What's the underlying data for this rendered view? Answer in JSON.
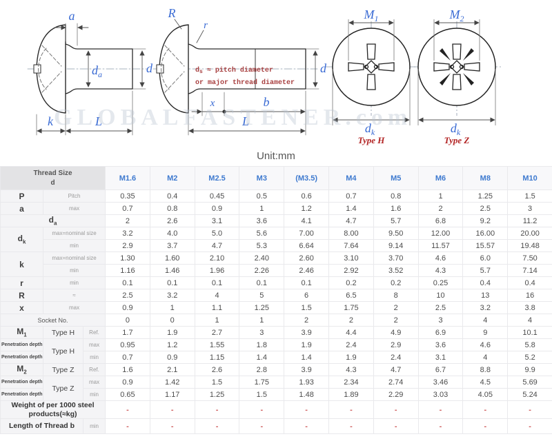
{
  "unit_label": "Unit:mm",
  "diagrams": {
    "watermark": "GLOBALFASTENER.com",
    "side_view_left": {
      "a": "a",
      "da_base": "d",
      "da_sub": "a",
      "d": "d",
      "k": "k",
      "L": "L"
    },
    "side_view_right": {
      "R": "R",
      "r": "r",
      "ds_base": "d",
      "ds_sub": "s",
      "ds_rest": " ≈ pitch diameter",
      "note_line2": "or major thread diameter",
      "d": "d",
      "x": "x",
      "b": "b",
      "L": "L"
    },
    "head_type_h": {
      "m_base": "M",
      "m_sub": "1",
      "dk_base": "d",
      "dk_sub": "k",
      "caption": "Type H"
    },
    "head_type_z": {
      "m_base": "M",
      "m_sub": "2",
      "dk_base": "d",
      "dk_sub": "k",
      "caption": "Type Z"
    }
  },
  "table": {
    "corner": [
      "Thread Size",
      "d"
    ],
    "columns": [
      "M1.6",
      "M2",
      "M2.5",
      "M3",
      "(M3.5)",
      "M4",
      "M5",
      "M6",
      "M8",
      "M10"
    ],
    "rows": [
      {
        "id": "P",
        "labels": [
          {
            "t": "P",
            "cls": "lbl-main",
            "span": 1
          },
          {
            "t": "Pitch",
            "cls": "lbl-sub",
            "span": 2
          }
        ],
        "values": [
          "0.35",
          "0.4",
          "0.45",
          "0.5",
          "0.6",
          "0.7",
          "0.8",
          "1",
          "1.25",
          "1.5"
        ]
      },
      {
        "id": "a",
        "labels": [
          {
            "t": "a",
            "cls": "lbl-main",
            "span": 1
          },
          {
            "t": "max",
            "cls": "lbl-sub",
            "span": 2
          }
        ],
        "values": [
          "0.7",
          "0.8",
          "0.9",
          "1",
          "1.2",
          "1.4",
          "1.6",
          "2",
          "2.5",
          "3"
        ]
      },
      {
        "id": "da",
        "labels": [
          {
            "t": "d",
            "sub": "a",
            "cls": "lbl-main",
            "span": 3
          }
        ],
        "values": [
          "2",
          "2.6",
          "3.1",
          "3.6",
          "4.1",
          "4.7",
          "5.7",
          "6.8",
          "9.2",
          "11.2"
        ]
      },
      {
        "id": "dk-max",
        "labels": [
          {
            "t": "d",
            "sub": "k",
            "cls": "lbl-main",
            "span": 1,
            "rs": 2
          },
          {
            "t": "max=nominal size",
            "cls": "lbl-sub",
            "span": 2
          }
        ],
        "values": [
          "3.2",
          "4.0",
          "5.0",
          "5.6",
          "7.00",
          "8.00",
          "9.50",
          "12.00",
          "16.00",
          "20.00"
        ]
      },
      {
        "id": "dk-min",
        "labels": [
          {
            "t": "min",
            "cls": "lbl-sub",
            "span": 2
          }
        ],
        "values": [
          "2.9",
          "3.7",
          "4.7",
          "5.3",
          "6.64",
          "7.64",
          "9.14",
          "11.57",
          "15.57",
          "19.48"
        ]
      },
      {
        "id": "k-max",
        "labels": [
          {
            "t": "k",
            "cls": "lbl-main",
            "span": 1,
            "rs": 2
          },
          {
            "t": "max=nominal size",
            "cls": "lbl-sub",
            "span": 2
          }
        ],
        "values": [
          "1.30",
          "1.60",
          "2.10",
          "2.40",
          "2.60",
          "3.10",
          "3.70",
          "4.6",
          "6.0",
          "7.50"
        ]
      },
      {
        "id": "k-min",
        "labels": [
          {
            "t": "min",
            "cls": "lbl-sub",
            "span": 2
          }
        ],
        "values": [
          "1.16",
          "1.46",
          "1.96",
          "2.26",
          "2.46",
          "2.92",
          "3.52",
          "4.3",
          "5.7",
          "7.14"
        ]
      },
      {
        "id": "r",
        "labels": [
          {
            "t": "r",
            "cls": "lbl-main",
            "span": 1
          },
          {
            "t": "min",
            "cls": "lbl-sub",
            "span": 2
          }
        ],
        "values": [
          "0.1",
          "0.1",
          "0.1",
          "0.1",
          "0.1",
          "0.2",
          "0.2",
          "0.25",
          "0.4",
          "0.4"
        ]
      },
      {
        "id": "R",
        "labels": [
          {
            "t": "R",
            "cls": "lbl-main",
            "span": 1
          },
          {
            "t": "≈",
            "cls": "lbl-sub",
            "span": 2
          }
        ],
        "values": [
          "2.5",
          "3.2",
          "4",
          "5",
          "6",
          "6.5",
          "8",
          "10",
          "13",
          "16"
        ]
      },
      {
        "id": "x",
        "labels": [
          {
            "t": "x",
            "cls": "lbl-main",
            "span": 1
          },
          {
            "t": "max",
            "cls": "lbl-sub",
            "span": 2
          }
        ],
        "values": [
          "0.9",
          "1",
          "1.1",
          "1.25",
          "1.5",
          "1.75",
          "2",
          "2.5",
          "3.2",
          "3.8"
        ]
      },
      {
        "id": "socket",
        "labels": [
          {
            "t": "Socket No.",
            "cls": "lbl-sub2",
            "span": 3
          }
        ],
        "values": [
          "0",
          "0",
          "1",
          "1",
          "2",
          "2",
          "2",
          "3",
          "4",
          "4"
        ]
      },
      {
        "id": "M1",
        "labels": [
          {
            "t": "M",
            "sub": "1",
            "cls": "lbl-main",
            "span": 1
          },
          {
            "t": "Type H",
            "cls": "lbl-mid",
            "span": 1
          },
          {
            "t": "Ref.",
            "cls": "lbl-sub",
            "span": 1
          }
        ],
        "values": [
          "1.7",
          "1.9",
          "2.7",
          "3",
          "3.9",
          "4.4",
          "4.9",
          "6.9",
          "9",
          "10.1"
        ]
      },
      {
        "id": "penH-max",
        "labels": [
          {
            "t": "Penetration depth",
            "cls": "lbl-pen",
            "span": 1
          },
          {
            "t": "Type H",
            "cls": "lbl-mid",
            "span": 1,
            "rs": 2
          },
          {
            "t": "max",
            "cls": "lbl-sub",
            "span": 1
          }
        ],
        "values": [
          "0.95",
          "1.2",
          "1.55",
          "1.8",
          "1.9",
          "2.4",
          "2.9",
          "3.6",
          "4.6",
          "5.8"
        ]
      },
      {
        "id": "penH-min",
        "labels": [
          {
            "t": "Penetration depth",
            "cls": "lbl-pen",
            "span": 1
          },
          {
            "t": "min",
            "cls": "lbl-sub",
            "span": 1
          }
        ],
        "values": [
          "0.7",
          "0.9",
          "1.15",
          "1.4",
          "1.4",
          "1.9",
          "2.4",
          "3.1",
          "4",
          "5.2"
        ]
      },
      {
        "id": "M2",
        "labels": [
          {
            "t": "M",
            "sub": "2",
            "cls": "lbl-main",
            "span": 1
          },
          {
            "t": "Type Z",
            "cls": "lbl-mid",
            "span": 1
          },
          {
            "t": "Ref.",
            "cls": "lbl-sub",
            "span": 1
          }
        ],
        "values": [
          "1.6",
          "2.1",
          "2.6",
          "2.8",
          "3.9",
          "4.3",
          "4.7",
          "6.7",
          "8.8",
          "9.9"
        ]
      },
      {
        "id": "penZ-max",
        "labels": [
          {
            "t": "Penetration depth",
            "cls": "lbl-pen",
            "span": 1
          },
          {
            "t": "Type Z",
            "cls": "lbl-mid",
            "span": 1,
            "rs": 2
          },
          {
            "t": "max",
            "cls": "lbl-sub",
            "span": 1
          }
        ],
        "values": [
          "0.9",
          "1.42",
          "1.5",
          "1.75",
          "1.93",
          "2.34",
          "2.74",
          "3.46",
          "4.5",
          "5.69"
        ]
      },
      {
        "id": "penZ-min",
        "labels": [
          {
            "t": "Penetration depth",
            "cls": "lbl-pen",
            "span": 1
          },
          {
            "t": "min",
            "cls": "lbl-sub",
            "span": 1
          }
        ],
        "values": [
          "0.65",
          "1.17",
          "1.25",
          "1.5",
          "1.48",
          "1.89",
          "2.29",
          "3.03",
          "4.05",
          "5.24"
        ]
      },
      {
        "id": "weight",
        "tall": true,
        "dash": true,
        "labels": [
          {
            "t": "Weight of per 1000 steel products(≈kg)",
            "cls": "lbl-weight",
            "span": 3
          }
        ],
        "values": [
          "-",
          "-",
          "-",
          "-",
          "-",
          "-",
          "-",
          "-",
          "-",
          "-"
        ]
      },
      {
        "id": "length-b",
        "last": true,
        "dash": true,
        "labels": [
          {
            "t": "Length of Thread b",
            "cls": "lbl-weight",
            "span": 2
          },
          {
            "t": "min",
            "cls": "lbl-sub",
            "span": 1
          }
        ],
        "values": [
          "-",
          "-",
          "-",
          "-",
          "-",
          "-",
          "-",
          "-",
          "-",
          "-"
        ]
      }
    ]
  }
}
